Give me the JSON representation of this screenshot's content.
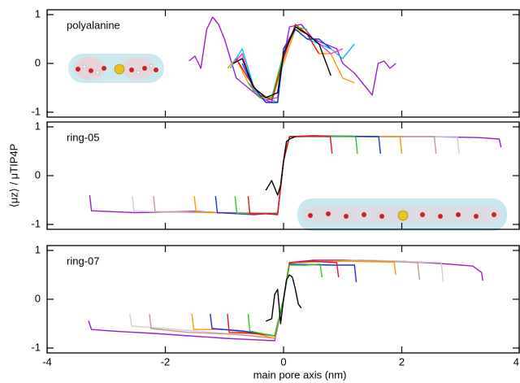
{
  "chart_data": [
    {
      "type": "line",
      "title": "polyalanine",
      "xlim": [
        -4,
        4
      ],
      "xticks": [
        -4,
        -2,
        0,
        2,
        4
      ],
      "ylim": [
        -1.1,
        1.1
      ],
      "yticks": [
        -1,
        0,
        1
      ],
      "series": [
        {
          "color": "#9a1fd0",
          "x": [
            -1.6,
            -1.5,
            -1.4,
            -1.3,
            -1.2,
            -1.1,
            -1.0,
            -0.8,
            -0.6,
            -0.4,
            -0.2,
            0.0,
            0.1,
            0.3,
            0.5,
            0.7,
            0.9,
            1.0,
            1.2,
            1.3,
            1.4,
            1.5,
            1.6,
            1.7,
            1.8,
            1.9
          ],
          "values": [
            0.05,
            0.15,
            -0.1,
            0.7,
            0.95,
            0.8,
            0.5,
            -0.3,
            -0.5,
            -0.7,
            -0.8,
            0.1,
            0.75,
            0.8,
            0.5,
            0.4,
            0.3,
            0.0,
            -0.2,
            -0.35,
            -0.5,
            -0.65,
            0.0,
            0.05,
            -0.1,
            0.0
          ]
        },
        {
          "color": "#ff9900",
          "x": [
            -0.95,
            -0.8,
            -0.6,
            -0.4,
            -0.2,
            0.0,
            0.2,
            0.4,
            0.6,
            0.8,
            1.0,
            1.2
          ],
          "values": [
            -0.1,
            0.1,
            -0.4,
            -0.6,
            -0.75,
            0.0,
            0.7,
            0.6,
            0.2,
            0.2,
            -0.3,
            -0.4
          ]
        },
        {
          "color": "#00c8e6",
          "x": [
            -0.9,
            -0.7,
            -0.5,
            -0.3,
            -0.1,
            0.0,
            0.2,
            0.4,
            0.6,
            0.8,
            1.0,
            1.2
          ],
          "values": [
            -0.1,
            0.3,
            -0.5,
            -0.7,
            -0.8,
            0.2,
            0.7,
            0.5,
            0.4,
            0.3,
            0.1,
            0.4
          ]
        },
        {
          "color": "#ff33cc",
          "x": [
            -0.85,
            -0.7,
            -0.5,
            -0.3,
            -0.1,
            0.0,
            0.2,
            0.4,
            0.6,
            0.8,
            1.0
          ],
          "values": [
            0.0,
            0.2,
            -0.6,
            -0.75,
            -0.7,
            0.3,
            0.75,
            0.6,
            0.4,
            0.2,
            0.3
          ]
        },
        {
          "color": "#ee1111",
          "x": [
            -0.8,
            -0.6,
            -0.4,
            -0.2,
            0.0,
            0.2,
            0.4,
            0.6
          ],
          "values": [
            0.1,
            -0.3,
            -0.65,
            -0.75,
            0.1,
            0.8,
            0.6,
            0.2
          ]
        },
        {
          "color": "#1133ee",
          "x": [
            -0.7,
            -0.5,
            -0.3,
            -0.1,
            0.0,
            0.2,
            0.4,
            0.6,
            0.8
          ],
          "values": [
            0.0,
            -0.5,
            -0.8,
            -0.8,
            0.3,
            0.7,
            0.5,
            0.5,
            0.3
          ]
        },
        {
          "color": "#22cc22",
          "x": [
            -0.6,
            -0.4,
            -0.2,
            0.0,
            0.2,
            0.4
          ],
          "values": [
            -0.4,
            -0.7,
            -0.7,
            0.2,
            0.75,
            0.7
          ]
        },
        {
          "color": "#000000",
          "x": [
            -0.85,
            -0.7,
            -0.5,
            -0.3,
            -0.1,
            0.0,
            0.2,
            0.4,
            0.6,
            0.8
          ],
          "values": [
            0.0,
            0.1,
            -0.5,
            -0.7,
            -0.6,
            0.2,
            0.75,
            0.6,
            0.4,
            -0.25
          ]
        }
      ]
    },
    {
      "type": "line",
      "title": "ring-05",
      "ylabel": "⟨μz⟩ / μTIP4P",
      "xlim": [
        -4,
        4
      ],
      "xticks": [
        -4,
        -2,
        0,
        2,
        4
      ],
      "ylim": [
        -1.1,
        1.1
      ],
      "yticks": [
        -1,
        0,
        1
      ],
      "series": [
        {
          "color": "#9a1fd0",
          "x": [
            -3.28,
            -3.25,
            -2.5,
            -1.5,
            -0.5,
            -0.1,
            0.0,
            0.1,
            0.5,
            1.5,
            2.5,
            3.3,
            3.65,
            3.68
          ],
          "values": [
            -0.4,
            -0.72,
            -0.76,
            -0.73,
            -0.8,
            -0.76,
            0.3,
            0.8,
            0.82,
            0.8,
            0.8,
            0.78,
            0.75,
            0.58
          ]
        },
        {
          "color": "#d0d0d0",
          "x": [
            -2.56,
            -2.53,
            -1.5,
            -0.1,
            0.0,
            0.1,
            1.5,
            2.94,
            2.97
          ],
          "values": [
            -0.42,
            -0.73,
            -0.75,
            -0.76,
            0.3,
            0.8,
            0.8,
            0.8,
            0.45
          ]
        },
        {
          "color": "#c49a8c",
          "x": [
            -2.2,
            -2.17,
            -1.2,
            -0.1,
            0.0,
            0.1,
            1.5,
            2.55,
            2.58
          ],
          "values": [
            -0.42,
            -0.74,
            -0.76,
            -0.77,
            0.3,
            0.8,
            0.8,
            0.8,
            0.45
          ]
        },
        {
          "color": "#ff9900",
          "x": [
            -1.51,
            -1.48,
            -0.8,
            -0.1,
            0.0,
            0.1,
            1.0,
            1.97,
            2.0
          ],
          "values": [
            -0.42,
            -0.74,
            -0.77,
            -0.78,
            0.3,
            0.8,
            0.81,
            0.8,
            0.45
          ]
        },
        {
          "color": "#1133ee",
          "x": [
            -1.15,
            -1.12,
            -0.6,
            -0.1,
            0.0,
            0.1,
            1.0,
            1.61,
            1.64
          ],
          "values": [
            -0.42,
            -0.76,
            -0.78,
            -0.78,
            0.3,
            0.8,
            0.81,
            0.8,
            0.45
          ]
        },
        {
          "color": "#22cc22",
          "x": [
            -0.82,
            -0.79,
            -0.4,
            -0.1,
            0.0,
            0.1,
            0.7,
            1.22,
            1.25
          ],
          "values": [
            -0.42,
            -0.77,
            -0.78,
            -0.79,
            0.3,
            0.8,
            0.81,
            0.8,
            0.45
          ]
        },
        {
          "color": "#ee1111",
          "x": [
            -0.6,
            -0.57,
            -0.3,
            -0.1,
            0.0,
            0.1,
            0.5,
            0.79,
            0.82
          ],
          "values": [
            -0.42,
            -0.78,
            -0.78,
            -0.8,
            0.3,
            0.8,
            0.81,
            0.8,
            0.45
          ]
        },
        {
          "color": "#000000",
          "x": [
            -0.3,
            -0.2,
            -0.1,
            -0.05,
            0.0,
            0.05,
            0.1,
            0.2
          ],
          "values": [
            -0.3,
            -0.1,
            -0.4,
            -0.2,
            0.3,
            0.7,
            0.75,
            0.8
          ]
        }
      ]
    },
    {
      "type": "line",
      "title": "ring-07",
      "xlabel": "main pore axis (nm)",
      "xlim": [
        -4,
        4
      ],
      "xticks": [
        -4,
        -2,
        0,
        2,
        4
      ],
      "ylim": [
        -1.1,
        1.1
      ],
      "yticks": [
        -1,
        0,
        1
      ],
      "series": [
        {
          "color": "#9a1fd0",
          "x": [
            -3.3,
            -3.25,
            -2.8,
            -2.2,
            -1.6,
            -1.0,
            -0.5,
            -0.15,
            0.0,
            0.1,
            0.5,
            1.0,
            2.0,
            2.8,
            3.2,
            3.35,
            3.37
          ],
          "values": [
            -0.44,
            -0.62,
            -0.66,
            -0.7,
            -0.75,
            -0.8,
            -0.83,
            -0.85,
            0.0,
            0.75,
            0.8,
            0.8,
            0.78,
            0.72,
            0.68,
            0.55,
            0.38
          ]
        },
        {
          "color": "#d0d0d0",
          "x": [
            -2.6,
            -2.57,
            -2.0,
            -1.0,
            -0.15,
            0.0,
            0.1,
            1.5,
            2.67,
            2.7
          ],
          "values": [
            -0.3,
            -0.55,
            -0.6,
            -0.7,
            -0.8,
            0.0,
            0.75,
            0.8,
            0.75,
            0.35
          ]
        },
        {
          "color": "#c49a8c",
          "x": [
            -2.27,
            -2.24,
            -1.6,
            -0.8,
            -0.15,
            0.0,
            0.1,
            1.3,
            2.27,
            2.3
          ],
          "values": [
            -0.3,
            -0.6,
            -0.68,
            -0.72,
            -0.8,
            0.0,
            0.75,
            0.8,
            0.75,
            0.4
          ]
        },
        {
          "color": "#ff9900",
          "x": [
            -1.55,
            -1.52,
            -1.0,
            -0.5,
            -0.15,
            0.0,
            0.1,
            1.0,
            1.87,
            1.9
          ],
          "values": [
            -0.3,
            -0.62,
            -0.62,
            -0.7,
            -0.8,
            0.0,
            0.75,
            0.78,
            0.76,
            0.5
          ]
        },
        {
          "color": "#1133ee",
          "x": [
            -1.24,
            -1.21,
            -0.7,
            -0.15,
            0.0,
            0.1,
            0.8,
            1.2,
            1.23
          ],
          "values": [
            -0.3,
            -0.6,
            -0.65,
            -0.75,
            0.0,
            0.72,
            0.7,
            0.7,
            0.35
          ]
        },
        {
          "color": "#ee1111",
          "x": [
            -0.95,
            -0.92,
            -0.5,
            -0.15,
            0.0,
            0.1,
            0.5,
            0.9,
            0.93
          ],
          "values": [
            -0.3,
            -0.68,
            -0.7,
            -0.75,
            0.0,
            0.75,
            0.78,
            0.75,
            0.45
          ]
        },
        {
          "color": "#22cc22",
          "x": [
            -0.6,
            -0.57,
            -0.3,
            -0.15,
            0.0,
            0.1,
            0.4,
            0.62,
            0.65
          ],
          "values": [
            -0.3,
            -0.65,
            -0.72,
            -0.75,
            0.0,
            0.7,
            0.7,
            0.72,
            0.45
          ]
        },
        {
          "color": "#000000",
          "x": [
            -0.3,
            -0.2,
            -0.15,
            -0.1,
            -0.05,
            0.0,
            0.05,
            0.1,
            0.15,
            0.2,
            0.25,
            0.3
          ],
          "values": [
            -0.45,
            -0.4,
            0.1,
            0.2,
            -0.5,
            0.0,
            0.4,
            0.5,
            0.45,
            0.2,
            -0.1,
            -0.18
          ]
        }
      ]
    }
  ]
}
